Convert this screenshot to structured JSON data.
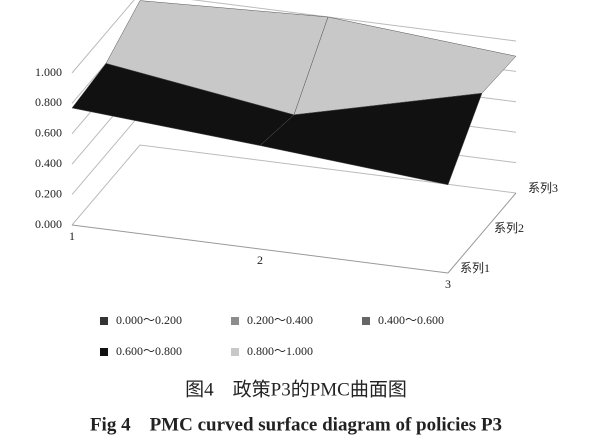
{
  "chart_data": {
    "type": "surface",
    "categories": [
      "1",
      "2",
      "3"
    ],
    "series": [
      {
        "name": "系列1",
        "values": [
          0.77,
          0.68,
          0.58
        ]
      },
      {
        "name": "系列2",
        "values": [
          0.8,
          0.62,
          0.92
        ]
      },
      {
        "name": "系列3",
        "values": [
          0.95,
          1.0,
          0.9
        ]
      }
    ],
    "ylim": [
      0,
      1
    ],
    "yticks": [
      {
        "value": 0,
        "label": "0.000"
      },
      {
        "value": 0.2,
        "label": "0.200"
      },
      {
        "value": 0.4,
        "label": "0.400"
      },
      {
        "value": 0.6,
        "label": "0.600"
      },
      {
        "value": 0.8,
        "label": "0.800"
      },
      {
        "value": 1,
        "label": "1.000"
      }
    ],
    "grid": true,
    "bands": [
      {
        "name": "0.000～0.200",
        "color": "#333333",
        "from": 0,
        "to": 0.2
      },
      {
        "name": "0.200～0.400",
        "color": "#8c8c8c",
        "from": 0.2,
        "to": 0.4
      },
      {
        "name": "0.400～0.600",
        "color": "#666666",
        "from": 0.4,
        "to": 0.6
      },
      {
        "name": "0.600～0.800",
        "color": "#111111",
        "from": 0.6,
        "to": 0.8
      },
      {
        "name": "0.800～1.000",
        "color": "#c8c8c8",
        "from": 0.8,
        "to": 1
      }
    ],
    "caption_cn": "图4　政策P3的PMC曲面图",
    "caption_en": "Fig 4　PMC curved surface diagram of policies P3"
  }
}
